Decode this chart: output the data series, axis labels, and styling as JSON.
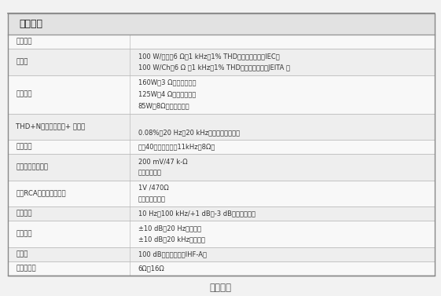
{
  "title_section": "功放部分",
  "caption": "功放参数",
  "bg_color": "#f2f2f2",
  "header_bg": "#e0e0e0",
  "row_bg1": "#f8f8f8",
  "row_bg2": "#eeeeee",
  "border_color": "#aaaaaa",
  "col_split": 0.295,
  "rows": [
    {
      "param": "功率输出",
      "value": ""
    },
    {
      "param": "全通道",
      "value": "100 W/通道（6 Ω，1 kHz，1% THD，单通道驱动，IEC）\n100 W/Ch（6 Ω ，1 kHz，1% THD，单声道驱动，JEITA ）"
    },
    {
      "param": "动态功率",
      "value": "160W（3 Ω，前置通道）\n125W（4 Ω，前置通道）\n85W（8Ω，前置通道）"
    },
    {
      "param": "THD+N（总谐波失真+ 噪声）",
      "value": "\n0.08%（20 Hz－20 kHz，一半功率输出）"
    },
    {
      "param": "阻尼因数",
      "value": "超过40（前置通道，11kHz，8Ω）"
    },
    {
      "param": "输入灵敏度及阻抗",
      "value": "200 mV/47 k-Ω\n（线路电平）"
    },
    {
      "param": "额定RCA输出电平及阻抗",
      "value": "1V /470Ω\n（重低音输出）"
    },
    {
      "param": "频率响应",
      "value": "10 Hz－100 kHz/+1 dB，-3 dB（直通模式）"
    },
    {
      "param": "音调控制",
      "value": "±10 dB，20 Hz（低频）\n±10 dB，20 kHz（高频）"
    },
    {
      "param": "信噪比",
      "value": "100 dB（线路电平，IHF-A）"
    },
    {
      "param": "扬声器阻抗",
      "value": "6Ω－16Ω"
    }
  ]
}
